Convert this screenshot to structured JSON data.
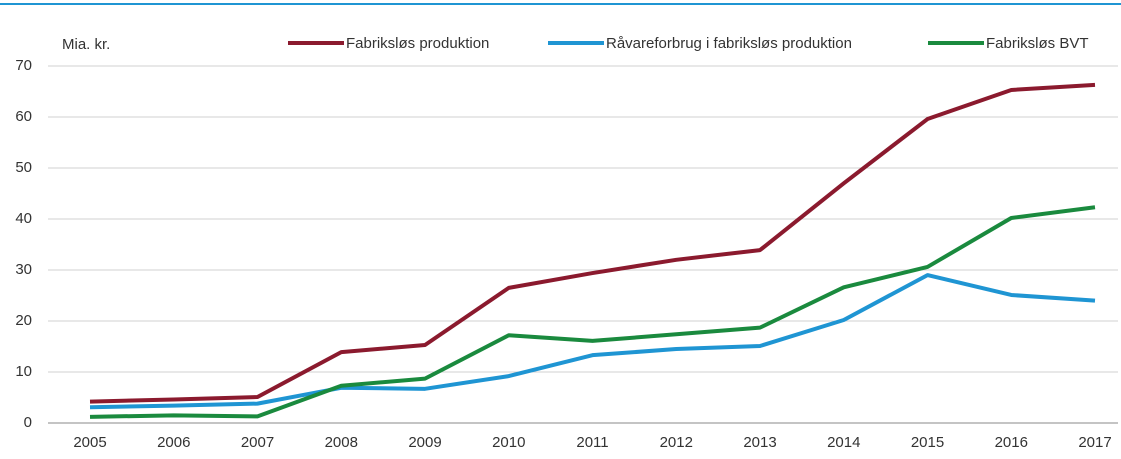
{
  "chart_data": {
    "type": "line",
    "y_label": "Mia. kr.",
    "categories": [
      "2005",
      "2006",
      "2007",
      "2008",
      "2009",
      "2010",
      "2011",
      "2012",
      "2013",
      "2014",
      "2015",
      "2016",
      "2017"
    ],
    "series": [
      {
        "name": "Fabriksløs produktion",
        "color": "#8b1a2e",
        "values": [
          4.2,
          4.6,
          5.1,
          13.9,
          15.3,
          26.5,
          29.4,
          32,
          33.9,
          47,
          59.6,
          65.3,
          66.3
        ]
      },
      {
        "name": "Råvareforbrug i fabriksløs produktion",
        "color": "#1f95d3",
        "values": [
          3.1,
          3.4,
          3.8,
          6.9,
          6.7,
          9.2,
          13.3,
          14.5,
          15.1,
          20.2,
          29,
          25.1,
          24
        ]
      },
      {
        "name": "Fabriksløs BVT",
        "color": "#1a8a3e",
        "values": [
          1.2,
          1.5,
          1.3,
          7.3,
          8.7,
          17.2,
          16.1,
          17.4,
          18.7,
          26.6,
          30.6,
          40.2,
          42.3
        ]
      }
    ],
    "ylim": [
      0,
      70
    ],
    "yticks": [
      0,
      10,
      20,
      30,
      40,
      50,
      60,
      70
    ],
    "grid": true
  }
}
